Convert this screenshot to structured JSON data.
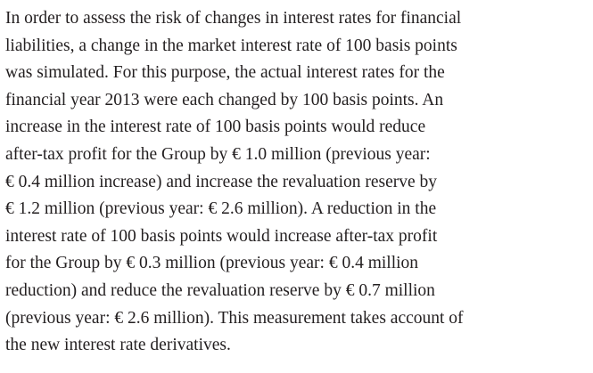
{
  "paragraph": {
    "lines": [
      "In order to assess the risk of changes in interest rates for financial",
      "liabilities, a change in the market interest rate of 100 basis points",
      "was simulated. For this purpose, the actual interest rates for the",
      "financial year 2013 were each changed by 100 basis points. An",
      "increase in the interest rate of 100 basis points would reduce",
      "after-tax profit for the Group by € 1.0 million (previous year:",
      "€ 0.4 million increase) and increase the revaluation reserve by",
      "€ 1.2 million (previous year: € 2.6 million). A reduction in the",
      "interest rate of 100 basis points would increase after-tax profit",
      "for the Group by € 0.3 million (previous year: € 0.4 million",
      "reduction) and reduce the revaluation reserve by € 0.7 million",
      "(previous year: € 2.6 million). This measurement takes account of",
      "the new interest rate derivatives."
    ]
  }
}
